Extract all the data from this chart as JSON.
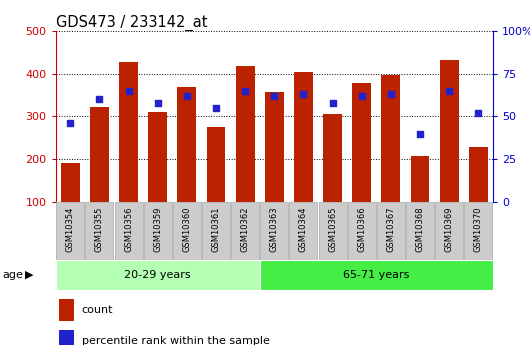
{
  "title": "GDS473 / 233142_at",
  "samples": [
    "GSM10354",
    "GSM10355",
    "GSM10356",
    "GSM10359",
    "GSM10360",
    "GSM10361",
    "GSM10362",
    "GSM10363",
    "GSM10364",
    "GSM10365",
    "GSM10366",
    "GSM10367",
    "GSM10368",
    "GSM10369",
    "GSM10370"
  ],
  "count_values": [
    190,
    322,
    428,
    310,
    370,
    275,
    418,
    357,
    403,
    305,
    378,
    396,
    207,
    432,
    228
  ],
  "percentile_values": [
    46,
    60,
    65,
    58,
    62,
    55,
    65,
    62,
    63,
    58,
    62,
    63,
    40,
    65,
    52
  ],
  "bar_color": "#bb2200",
  "dot_color": "#2222cc",
  "ylim_left": [
    100,
    500
  ],
  "ylim_right": [
    0,
    100
  ],
  "yticks_left": [
    100,
    200,
    300,
    400,
    500
  ],
  "yticks_right": [
    0,
    25,
    50,
    75,
    100
  ],
  "groups": [
    {
      "label": "20-29 years",
      "start": 0,
      "end": 7,
      "color": "#b3ffb3"
    },
    {
      "label": "65-71 years",
      "start": 7,
      "end": 15,
      "color": "#44ee44"
    }
  ],
  "age_label": "age",
  "legend_count": "count",
  "legend_percentile": "percentile rank within the sample",
  "axis_color_left": "#cc0000",
  "axis_color_right": "#0000cc",
  "bar_bottom": 100,
  "n_split": 7,
  "tick_bg_color": "#cccccc",
  "tick_border_color": "#999999"
}
